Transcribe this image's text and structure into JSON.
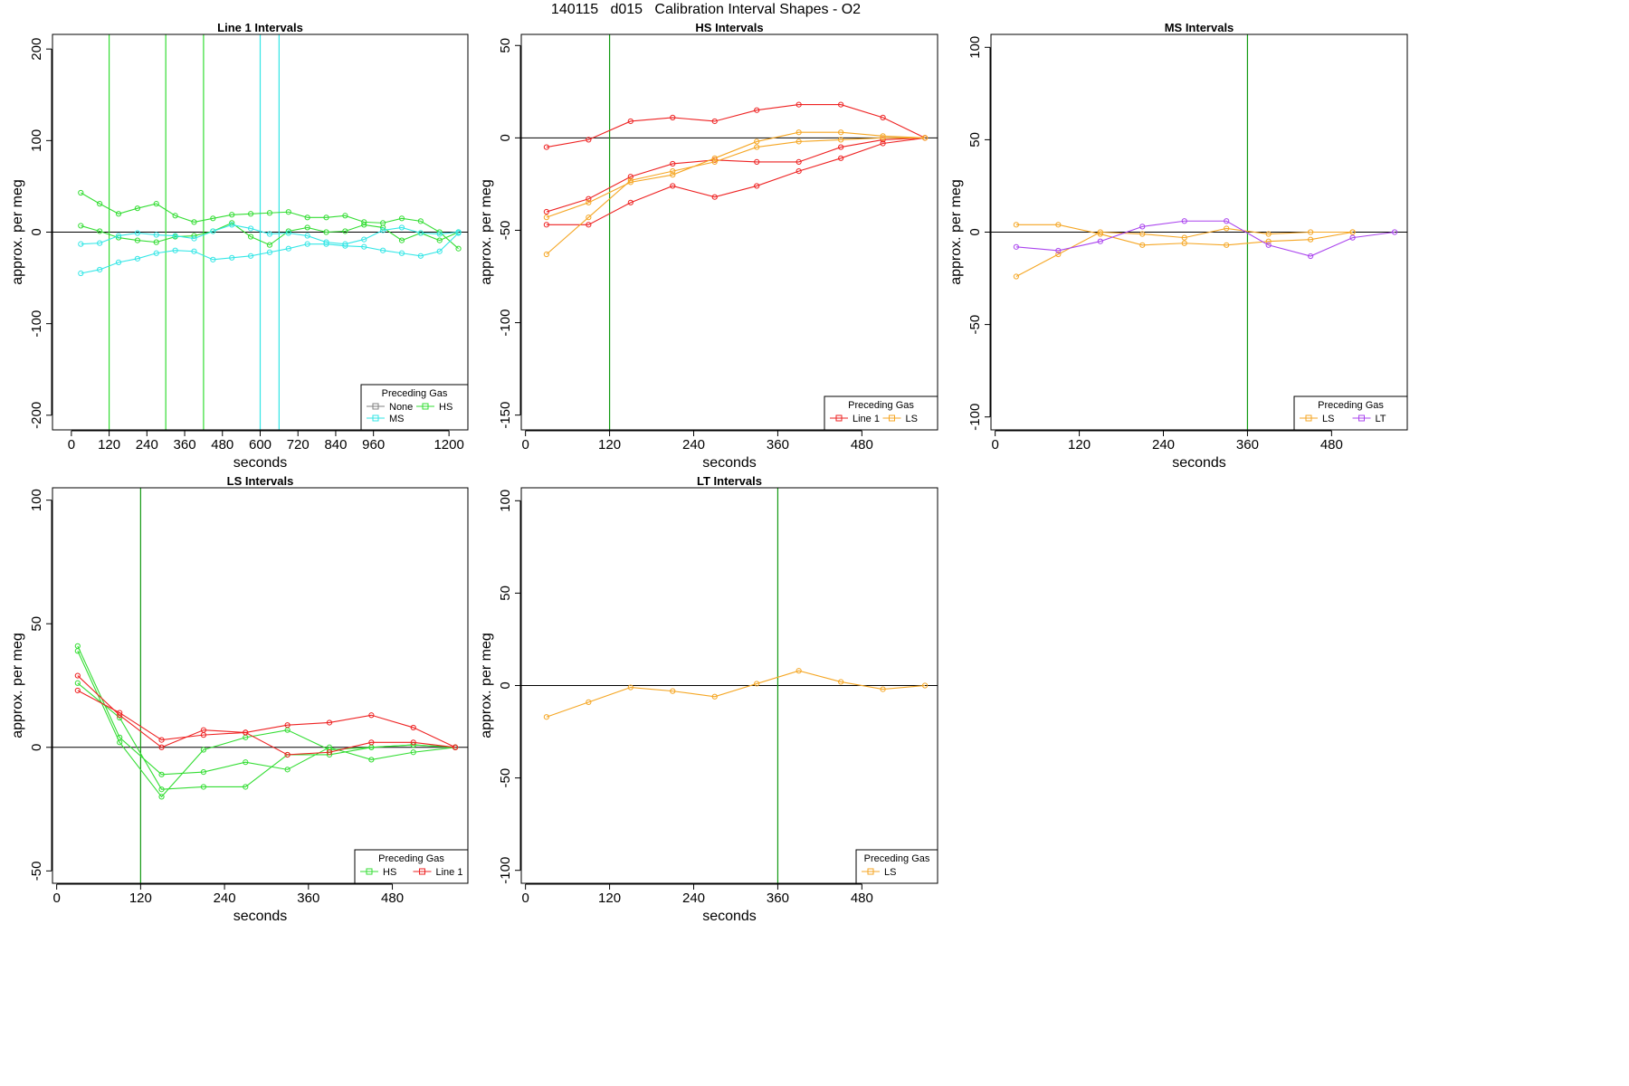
{
  "figure": {
    "title": "140115   d015   Calibration Interval Shapes - O2"
  },
  "colors": {
    "None": "#808080",
    "HS": "#33dd33",
    "MS": "#33e6e6",
    "Line 1": "#ee2222",
    "LS": "#f5a623",
    "LT": "#aa44ee"
  },
  "chart_data": [
    {
      "type": "line",
      "title": "Line 1 Intervals",
      "xlabel": "seconds",
      "ylabel": "approx. per meg",
      "xlim": [
        -60,
        1260
      ],
      "ylim": [
        -216,
        216
      ],
      "x_ticks": [
        0,
        120,
        240,
        360,
        480,
        600,
        720,
        840,
        960,
        1200
      ],
      "x_tick_labels": [
        "0",
        "120",
        "240",
        "360",
        "480",
        "600",
        "720",
        "840",
        "960",
        "1200"
      ],
      "y_ticks": [
        -200,
        -100,
        0,
        100,
        200
      ],
      "y_tick_labels": [
        "-200",
        "-100",
        "0",
        "100",
        "200"
      ],
      "zero_line": true,
      "vlines": [
        {
          "x": 120,
          "color": "HS"
        },
        {
          "x": 300,
          "color": "HS"
        },
        {
          "x": 420,
          "color": "HS"
        },
        {
          "x": 600,
          "color": "MS"
        },
        {
          "x": 660,
          "color": "MS"
        }
      ],
      "legend": {
        "title": "Preceding Gas",
        "entries": [
          "None",
          "HS",
          "MS"
        ],
        "position": "bottom-right"
      },
      "series": [
        {
          "gas": "HS",
          "x": [
            30,
            90,
            150,
            210,
            270,
            330,
            390,
            450,
            510,
            570,
            630,
            690,
            750,
            810,
            870,
            930,
            990,
            1050,
            1110,
            1170,
            1230
          ],
          "values": [
            43,
            31,
            20,
            26,
            31,
            18,
            11,
            15,
            19,
            20,
            21,
            22,
            16,
            16,
            18,
            11,
            10,
            15,
            12,
            0,
            -18
          ]
        },
        {
          "gas": "HS",
          "x": [
            30,
            90,
            150,
            210,
            270,
            330,
            390,
            450,
            510,
            570,
            630,
            690,
            750,
            810,
            870,
            930,
            990,
            1050,
            1110,
            1170,
            1230
          ],
          "values": [
            7,
            1,
            -6,
            -9,
            -11,
            -5,
            -4,
            1,
            10,
            -5,
            -14,
            1,
            5,
            0,
            1,
            8,
            5,
            -9,
            -1,
            -9,
            0
          ]
        },
        {
          "gas": "MS",
          "x": [
            30,
            90,
            150,
            210,
            270,
            330,
            390,
            450,
            510,
            570,
            630,
            690,
            750,
            810,
            870,
            930,
            990,
            1050,
            1110,
            1170,
            1230
          ],
          "values": [
            -13,
            -12,
            -4,
            -1,
            -3,
            -4,
            -7,
            1,
            8,
            4,
            -2,
            -1,
            -4,
            -11,
            -13,
            -8,
            2,
            5,
            -1,
            -2,
            0
          ]
        },
        {
          "gas": "MS",
          "x": [
            30,
            90,
            150,
            210,
            270,
            330,
            390,
            450,
            510,
            570,
            630,
            690,
            750,
            810,
            870,
            930,
            990,
            1050,
            1110,
            1170,
            1230
          ],
          "values": [
            -45,
            -41,
            -33,
            -29,
            -23,
            -20,
            -21,
            -30,
            -28,
            -26,
            -22,
            -18,
            -13,
            -13,
            -15,
            -16,
            -20,
            -23,
            -26,
            -21,
            -1
          ]
        }
      ]
    },
    {
      "type": "line",
      "title": "HS Intervals",
      "xlabel": "seconds",
      "ylabel": "approx. per meg",
      "xlim": [
        -6,
        588
      ],
      "ylim": [
        -158,
        56
      ],
      "x_ticks": [
        0,
        120,
        240,
        360,
        480
      ],
      "x_tick_labels": [
        "0",
        "120",
        "240",
        "360",
        "480"
      ],
      "y_ticks": [
        -150,
        -100,
        -50,
        0,
        50
      ],
      "y_tick_labels": [
        "-150",
        "-100",
        "-50",
        "0",
        "50"
      ],
      "zero_line": true,
      "vlines": [
        {
          "x": 120,
          "color": "HS"
        }
      ],
      "legend": {
        "title": "Preceding Gas",
        "entries": [
          "Line 1",
          "LS"
        ],
        "position": "bottom-right"
      },
      "series": [
        {
          "gas": "Line 1",
          "x": [
            30,
            90,
            150,
            210,
            270,
            330,
            390,
            450,
            510,
            570
          ],
          "values": [
            -5,
            -1,
            9,
            11,
            9,
            15,
            18,
            18,
            11,
            0
          ]
        },
        {
          "gas": "Line 1",
          "x": [
            30,
            90,
            150,
            210,
            270,
            330,
            390,
            450,
            510,
            570
          ],
          "values": [
            -40,
            -33,
            -21,
            -14,
            -12,
            -13,
            -13,
            -5,
            -1,
            0
          ]
        },
        {
          "gas": "Line 1",
          "x": [
            30,
            90,
            150,
            210,
            270,
            330,
            390,
            450,
            510,
            570
          ],
          "values": [
            -47,
            -47,
            -35,
            -26,
            -32,
            -26,
            -18,
            -11,
            -3,
            0
          ]
        },
        {
          "gas": "LS",
          "x": [
            30,
            90,
            150,
            210,
            270,
            330,
            390,
            450,
            510,
            570
          ],
          "values": [
            -43,
            -35,
            -24,
            -20,
            -11,
            -2,
            3,
            3,
            1,
            0
          ]
        },
        {
          "gas": "LS",
          "x": [
            30,
            90,
            150,
            210,
            270,
            330,
            390,
            450,
            510,
            570
          ],
          "values": [
            -63,
            -43,
            -23,
            -18,
            -13,
            -5,
            -2,
            -1,
            0,
            0
          ]
        }
      ]
    },
    {
      "type": "line",
      "title": "MS Intervals",
      "xlabel": "seconds",
      "ylabel": "approx. per meg",
      "xlim": [
        -6,
        588
      ],
      "ylim": [
        -107,
        107
      ],
      "x_ticks": [
        0,
        120,
        240,
        360,
        480
      ],
      "x_tick_labels": [
        "0",
        "120",
        "240",
        "360",
        "480"
      ],
      "y_ticks": [
        -100,
        -50,
        0,
        50,
        100
      ],
      "y_tick_labels": [
        "-100",
        "-50",
        "0",
        "50",
        "100"
      ],
      "zero_line": true,
      "vlines": [
        {
          "x": 360,
          "color": "HS"
        }
      ],
      "legend": {
        "title": "Preceding Gas",
        "entries": [
          "LS",
          "LT"
        ],
        "position": "bottom-right"
      },
      "series": [
        {
          "gas": "LS",
          "x": [
            30,
            90,
            150,
            210,
            270,
            330,
            390,
            450,
            510
          ],
          "values": [
            4,
            4,
            -1,
            -7,
            -6,
            -7,
            -5,
            -4,
            0
          ]
        },
        {
          "gas": "LS",
          "x": [
            30,
            90,
            150,
            210,
            270,
            330,
            390,
            450,
            510
          ],
          "values": [
            -24,
            -12,
            0,
            -1,
            -3,
            2,
            -1,
            0,
            0
          ]
        },
        {
          "gas": "LT",
          "x": [
            30,
            90,
            150,
            210,
            270,
            330,
            390,
            450,
            510,
            570
          ],
          "values": [
            -8,
            -10,
            -5,
            3,
            6,
            6,
            -7,
            -13,
            -3,
            0
          ]
        }
      ]
    },
    {
      "type": "line",
      "title": "LS Intervals",
      "xlabel": "seconds",
      "ylabel": "approx. per meg",
      "xlim": [
        -6,
        588
      ],
      "ylim": [
        -55,
        105
      ],
      "x_ticks": [
        0,
        120,
        240,
        360,
        480
      ],
      "x_tick_labels": [
        "0",
        "120",
        "240",
        "360",
        "480"
      ],
      "y_ticks": [
        -50,
        0,
        50,
        100
      ],
      "y_tick_labels": [
        "-50",
        "0",
        "50",
        "100"
      ],
      "zero_line": true,
      "vlines": [
        {
          "x": 120,
          "color": "HS"
        }
      ],
      "legend": {
        "title": "Preceding Gas",
        "entries": [
          "HS",
          "Line 1"
        ],
        "position": "bottom-right"
      },
      "series": [
        {
          "gas": "HS",
          "x": [
            30,
            90,
            150,
            210,
            270,
            330,
            390,
            450,
            510,
            570
          ],
          "values": [
            41,
            4,
            -11,
            -10,
            -6,
            -9,
            0,
            -5,
            -2,
            0
          ]
        },
        {
          "gas": "HS",
          "x": [
            30,
            90,
            150,
            210,
            270,
            330,
            390,
            450,
            510,
            570
          ],
          "values": [
            39,
            2,
            -20,
            -1,
            4,
            7,
            -1,
            0,
            1,
            0
          ]
        },
        {
          "gas": "HS",
          "x": [
            30,
            90,
            150,
            210,
            270,
            330,
            390,
            450,
            510,
            570
          ],
          "values": [
            26,
            12,
            -17,
            -16,
            -16,
            -3,
            -3,
            0,
            1,
            0
          ]
        },
        {
          "gas": "Line 1",
          "x": [
            30,
            90,
            150,
            210,
            270,
            330,
            390,
            450,
            510,
            570
          ],
          "values": [
            29,
            13,
            0,
            7,
            6,
            9,
            10,
            13,
            8,
            0
          ]
        },
        {
          "gas": "Line 1",
          "x": [
            30,
            90,
            150,
            210,
            270,
            330,
            390,
            450,
            510,
            570
          ],
          "values": [
            23,
            14,
            3,
            5,
            6,
            -3,
            -2,
            2,
            2,
            0
          ]
        }
      ]
    },
    {
      "type": "line",
      "title": "LT Intervals",
      "xlabel": "seconds",
      "ylabel": "approx. per meg",
      "xlim": [
        -6,
        588
      ],
      "ylim": [
        -107,
        107
      ],
      "x_ticks": [
        0,
        120,
        240,
        360,
        480
      ],
      "x_tick_labels": [
        "0",
        "120",
        "240",
        "360",
        "480"
      ],
      "y_ticks": [
        -100,
        -50,
        0,
        50,
        100
      ],
      "y_tick_labels": [
        "-100",
        "-50",
        "0",
        "50",
        "100"
      ],
      "zero_line": true,
      "vlines": [
        {
          "x": 360,
          "color": "HS"
        }
      ],
      "legend": {
        "title": "Preceding Gas",
        "entries": [
          "LS"
        ],
        "position": "bottom-right"
      },
      "series": [
        {
          "gas": "LS",
          "x": [
            30,
            90,
            150,
            210,
            270,
            330,
            390,
            450,
            510,
            570
          ],
          "values": [
            -17,
            -9,
            -1,
            -3,
            -6,
            1,
            8,
            2,
            -2,
            0
          ]
        }
      ]
    }
  ]
}
